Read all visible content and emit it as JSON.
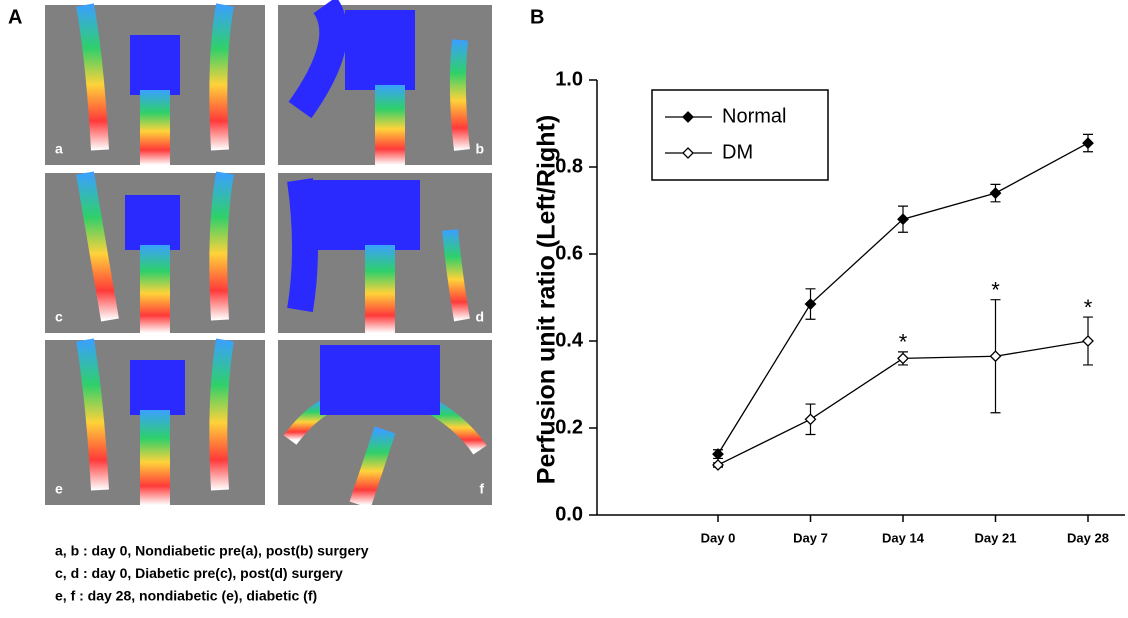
{
  "panel_labels": [
    "A",
    "B"
  ],
  "image_labels": [
    "a",
    "b",
    "c",
    "d",
    "e",
    "f"
  ],
  "caption": [
    "a, b : day 0, Nondiabetic pre(a), post(b) surgery",
    "c, d : day 0, Diabetic pre(c), post(d) surgery",
    "e, f :  day 28, nondiabetic (e), diabetic (f)"
  ],
  "chart_data": {
    "type": "line",
    "y_label": "Perfusion unit ratio (Left/Right)",
    "categories": [
      "Day 0",
      "Day 7",
      "Day 14",
      "Day 21",
      "Day 28"
    ],
    "series": [
      {
        "name": "Normal",
        "color": "#000000",
        "marker": "filled",
        "values": [
          0.14,
          0.485,
          0.68,
          0.74,
          0.855
        ],
        "errors": [
          0.01,
          0.035,
          0.03,
          0.02,
          0.02
        ]
      },
      {
        "name": "DM",
        "color": "#000000",
        "marker": "open",
        "values": [
          0.115,
          0.22,
          0.36,
          0.365,
          0.4
        ],
        "errors": [
          0.005,
          0.035,
          0.015,
          0.13,
          0.055
        ]
      }
    ],
    "annotations": [
      null,
      null,
      "*",
      "*",
      "*"
    ],
    "ylim": [
      0,
      1
    ],
    "yticks": [
      {
        "value": 0,
        "label": "0.0"
      },
      0.2,
      0.4,
      0.6,
      0.8,
      {
        "value": 1,
        "label": "1.0"
      }
    ],
    "legend": "top-left",
    "grid": false
  }
}
